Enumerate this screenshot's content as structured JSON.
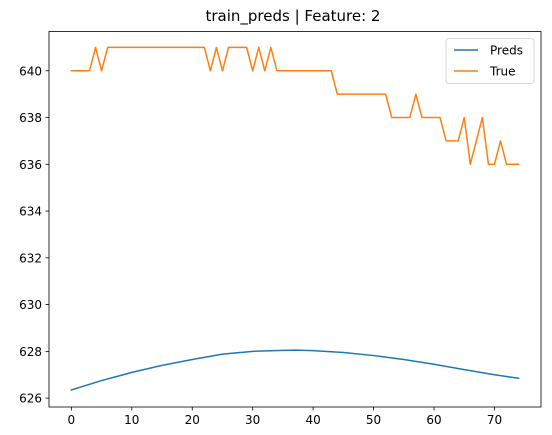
{
  "chart_data": {
    "type": "line",
    "title": "train_preds | Feature: 2",
    "xlabel": "",
    "ylabel": "",
    "xlim": [
      -3.7,
      77.7
    ],
    "ylim": [
      625.62,
      641.68
    ],
    "xticks": [
      0,
      10,
      20,
      30,
      40,
      50,
      60,
      70
    ],
    "yticks": [
      626,
      628,
      630,
      632,
      634,
      636,
      638,
      640
    ],
    "grid": false,
    "legend_position": "upper right",
    "series": [
      {
        "name": "Preds",
        "color": "#1f77b4",
        "x": [
          0,
          5,
          10,
          15,
          20,
          25,
          30,
          35,
          37,
          40,
          45,
          50,
          55,
          60,
          65,
          70,
          74
        ],
        "y": [
          626.35,
          626.75,
          627.1,
          627.4,
          627.65,
          627.88,
          628.0,
          628.04,
          628.05,
          628.03,
          627.95,
          627.82,
          627.65,
          627.45,
          627.22,
          627.0,
          626.85
        ]
      },
      {
        "name": "True",
        "color": "#ff7f0e",
        "x": [
          0,
          1,
          2,
          3,
          4,
          5,
          6,
          7,
          8,
          9,
          10,
          11,
          12,
          13,
          14,
          15,
          16,
          17,
          18,
          19,
          20,
          21,
          22,
          23,
          24,
          25,
          26,
          27,
          28,
          29,
          30,
          31,
          32,
          33,
          34,
          35,
          36,
          37,
          38,
          39,
          40,
          41,
          42,
          43,
          44,
          45,
          46,
          47,
          48,
          49,
          50,
          51,
          52,
          53,
          54,
          55,
          56,
          57,
          58,
          59,
          60,
          61,
          62,
          63,
          64,
          65,
          66,
          67,
          68,
          69,
          70,
          71,
          72,
          73,
          74
        ],
        "y": [
          640,
          640,
          640,
          640,
          641,
          640,
          641,
          641,
          641,
          641,
          641,
          641,
          641,
          641,
          641,
          641,
          641,
          641,
          641,
          641,
          641,
          641,
          641,
          640,
          641,
          640,
          641,
          641,
          641,
          641,
          640,
          641,
          640,
          641,
          640,
          640,
          640,
          640,
          640,
          640,
          640,
          640,
          640,
          640,
          639,
          639,
          639,
          639,
          639,
          639,
          639,
          639,
          639,
          638,
          638,
          638,
          638,
          639,
          638,
          638,
          638,
          638,
          637,
          637,
          637,
          638,
          636,
          637,
          638,
          636,
          636,
          637,
          636,
          636,
          636
        ]
      }
    ]
  }
}
